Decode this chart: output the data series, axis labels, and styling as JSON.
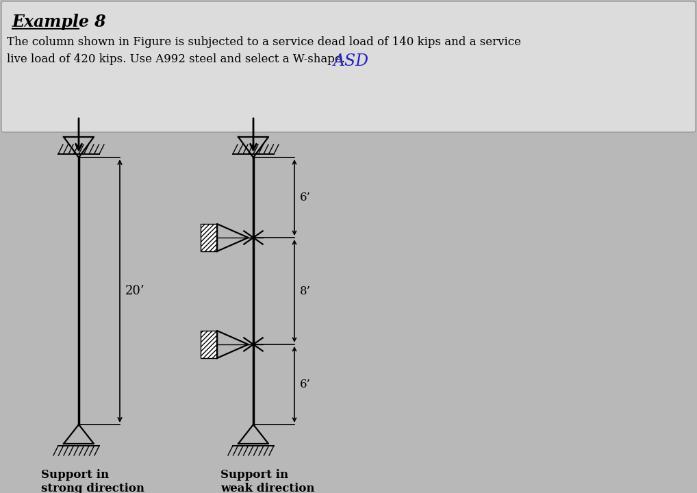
{
  "bg_color": "#b8b8b8",
  "box_color": "#e0e0e0",
  "title": "Example 8",
  "problem_text_line1": "The column shown in Figure is subjected to a service dead load of 140 kips and a service",
  "problem_text_line2": "live load of 420 kips. Use A992 steel and select a W-shape.",
  "asd_text": "ASD",
  "total_height_label": "20’",
  "seg1_label": "6’",
  "seg2_label": "8’",
  "seg3_label": "6’",
  "support_strong_label": "Support in\nstrong direction",
  "support_weak_label": "Support in\nweak direction",
  "line_color": "#000000",
  "text_color": "#000000",
  "asd_color": "#2222bb"
}
